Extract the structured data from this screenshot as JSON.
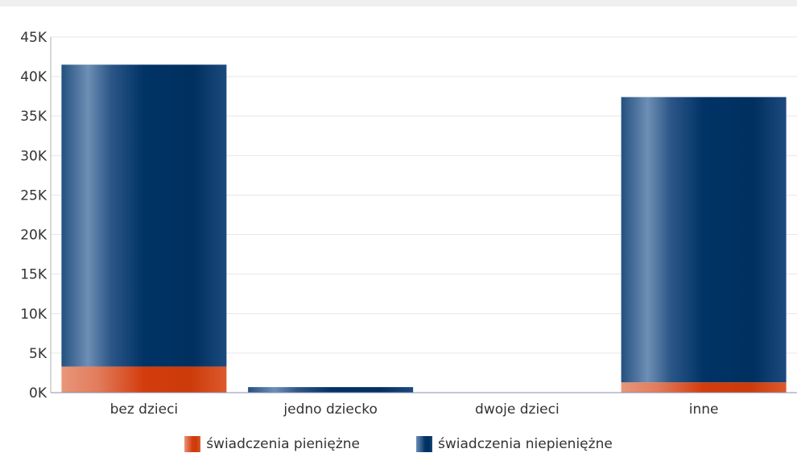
{
  "chart_data": {
    "type": "bar",
    "stacked": true,
    "categories": [
      "bez dzieci",
      "jedno dziecko",
      "dwoje dzieci",
      "inne"
    ],
    "series": [
      {
        "name": "świadczenia pieniężne",
        "values": [
          3300,
          0,
          0,
          1300
        ],
        "color": "#d33c0c"
      },
      {
        "name": "świadczenia niepieniężne",
        "values": [
          38200,
          700,
          0,
          36100
        ],
        "color": "#003366"
      }
    ],
    "ylim": [
      0,
      45000
    ],
    "yticks": [
      "0K",
      "5K",
      "10K",
      "15K",
      "20K",
      "25K",
      "30K",
      "35K",
      "40K",
      "45K"
    ],
    "grid": true,
    "legend": "bottom"
  }
}
